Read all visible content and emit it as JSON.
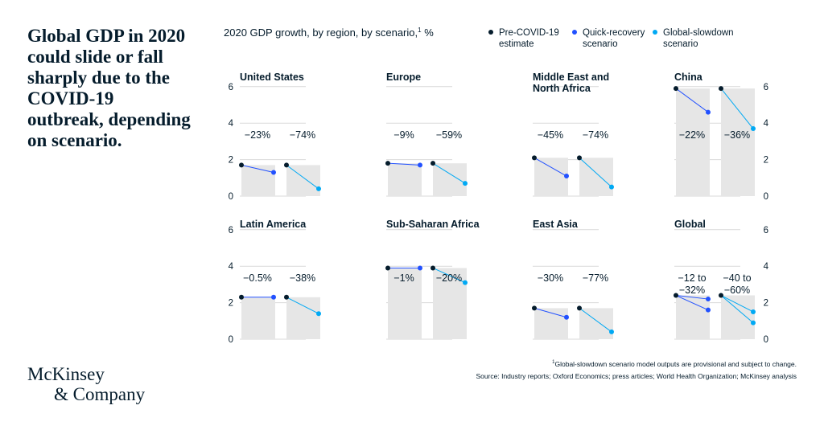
{
  "headline": "Global GDP in 2020 could slide or fall sharply due to the COVID-19 outbreak, depending on scenario.",
  "logo": {
    "line1": "McKinsey",
    "line2": "& Company"
  },
  "footnote": "Global-slowdown scenario model outputs are provisional and subject to change.",
  "footnote_mark": "1",
  "source": "Source: Industry reports; Oxford Economics; press articles; World Health Organization; McKinsey analysis",
  "chart_data": {
    "type": "line",
    "title": "2020 GDP growth, by region, by scenario,",
    "title_sup": "1",
    "title_unit": " %",
    "ylim": [
      0,
      6
    ],
    "yticks": [
      0,
      2,
      4,
      6
    ],
    "grid": true,
    "legend_position": "top-right",
    "colors": {
      "pre": "#051c2c",
      "quick": "#2251ff",
      "slow": "#00a9f4",
      "bar": "#e6e6e6",
      "grid": "#d9d9d9"
    },
    "legend": [
      {
        "key": "pre",
        "lines": [
          "Pre-COVID-19",
          "estimate"
        ]
      },
      {
        "key": "quick",
        "lines": [
          "Quick-recovery",
          "scenario"
        ]
      },
      {
        "key": "slow",
        "lines": [
          "Global-slowdown",
          "scenario"
        ]
      }
    ],
    "regions": [
      {
        "name": [
          "United States"
        ],
        "pre": 1.7,
        "quick": 1.3,
        "slow": 0.4,
        "quick_change": [
          "−23%"
        ],
        "slow_change": [
          "−74%"
        ]
      },
      {
        "name": [
          "Europe"
        ],
        "pre": 1.8,
        "quick": 1.7,
        "slow": 0.7,
        "quick_change": [
          "−9%"
        ],
        "slow_change": [
          "−59%"
        ]
      },
      {
        "name": [
          "Middle East and",
          "North Africa"
        ],
        "pre": 2.1,
        "quick": 1.1,
        "slow": 0.5,
        "quick_change": [
          "−45%"
        ],
        "slow_change": [
          "−74%"
        ]
      },
      {
        "name": [
          "China"
        ],
        "pre": 5.9,
        "quick": 4.6,
        "slow": 3.7,
        "quick_change": [
          "−22%"
        ],
        "slow_change": [
          "−36%"
        ]
      },
      {
        "name": [
          "Latin America"
        ],
        "pre": 2.3,
        "quick": 2.3,
        "slow": 1.4,
        "quick_change": [
          "−0.5%"
        ],
        "slow_change": [
          "−38%"
        ]
      },
      {
        "name": [
          "Sub-Saharan Africa"
        ],
        "pre": 3.9,
        "quick": 3.9,
        "slow": 3.1,
        "quick_change": [
          "−1%"
        ],
        "slow_change": [
          "−20%"
        ]
      },
      {
        "name": [
          "East Asia"
        ],
        "pre": 1.7,
        "quick": 1.2,
        "slow": 0.4,
        "quick_change": [
          "−30%"
        ],
        "slow_change": [
          "−77%"
        ]
      },
      {
        "name": [
          "Global"
        ],
        "pre": 2.4,
        "quick": [
          2.2,
          1.6
        ],
        "slow": [
          1.5,
          0.9
        ],
        "quick_change": [
          "−12 to",
          "−32%"
        ],
        "slow_change": [
          "−40 to",
          "−60%"
        ]
      }
    ]
  }
}
